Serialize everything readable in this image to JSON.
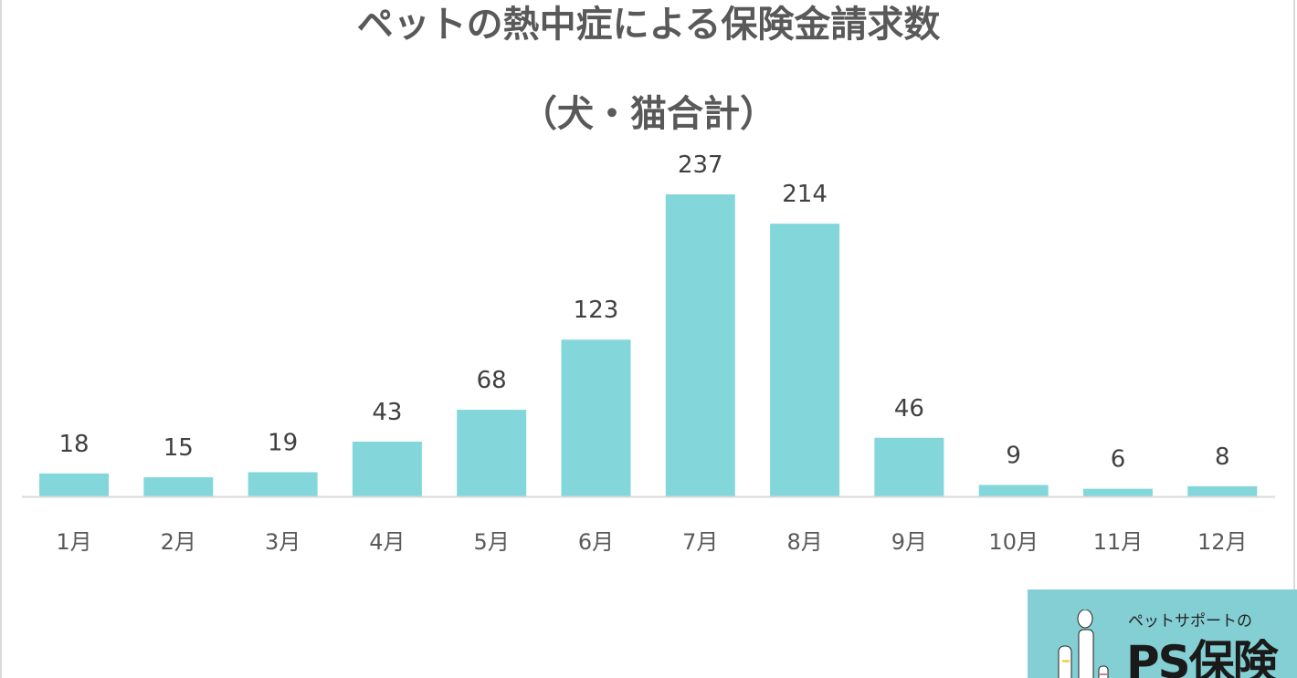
{
  "chart_data": {
    "type": "bar",
    "title": "ペットの熱中症による保険金請求数",
    "subtitle": "（犬・猫合計）",
    "categories": [
      "1月",
      "2月",
      "3月",
      "4月",
      "5月",
      "6月",
      "7月",
      "8月",
      "9月",
      "10月",
      "11月",
      "12月"
    ],
    "values": [
      18,
      15,
      19,
      43,
      68,
      123,
      237,
      214,
      46,
      9,
      6,
      8
    ],
    "data_labels": true,
    "ylim": [
      0,
      237
    ],
    "grid": false,
    "bar_color": "#83d7db"
  },
  "logo": {
    "small_text": "ペットサポートの",
    "brand": "PS保険",
    "color": "#84cfd3"
  }
}
